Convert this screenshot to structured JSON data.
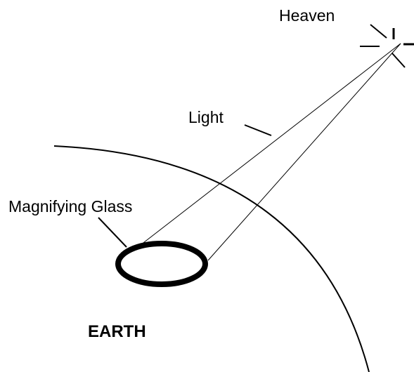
{
  "labels": {
    "heaven": "Heaven",
    "light": "Light",
    "magnifying_glass": "Magnifying Glass",
    "earth": "EARTH"
  }
}
